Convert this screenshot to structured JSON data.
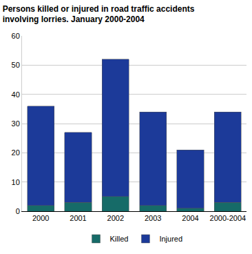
{
  "chart_data": {
    "type": "bar",
    "title": "Persons killed or injured in road traffic accidents\ninvolving lorries. January 2000-2004",
    "categories": [
      "2000",
      "2001",
      "2002",
      "2003",
      "2004",
      "2000-2004"
    ],
    "series": [
      {
        "name": "Killed",
        "color": "#166b68",
        "values": [
          2,
          3,
          5,
          2,
          1,
          3
        ]
      },
      {
        "name": "Injured",
        "color": "#1c3a99",
        "values": [
          34,
          24,
          47,
          32,
          20,
          31
        ]
      }
    ],
    "stacked": true,
    "ylim": [
      0,
      60
    ],
    "yticks": [
      0,
      10,
      20,
      30,
      40,
      50,
      60
    ],
    "grid": true,
    "legend": "bottom"
  }
}
